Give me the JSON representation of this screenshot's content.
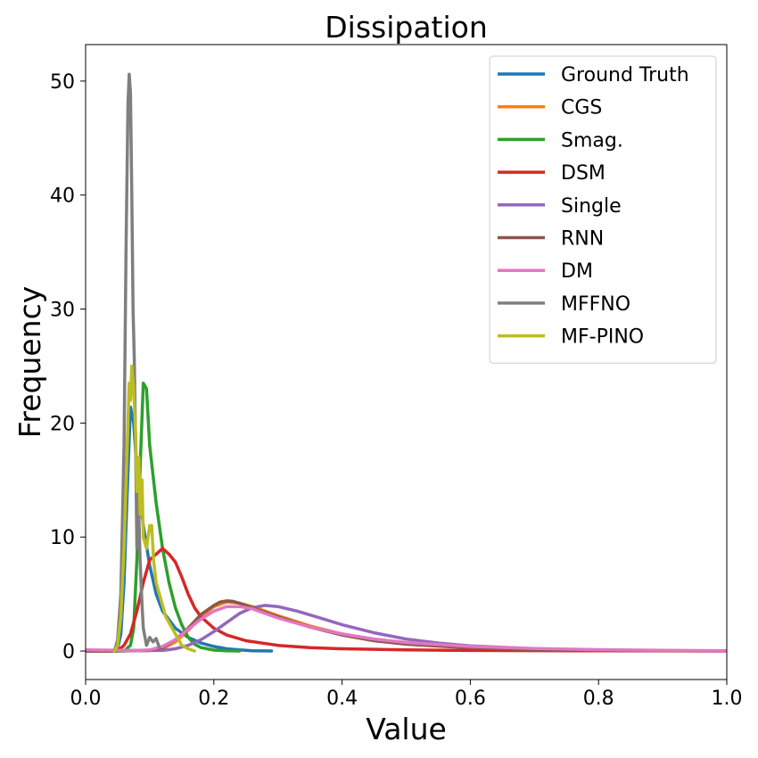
{
  "chart_data": {
    "type": "line",
    "title": "Dissipation",
    "xlabel": "Value",
    "ylabel": "Frequency",
    "xlim": [
      0.0,
      1.0
    ],
    "ylim": [
      -2.5,
      53.2
    ],
    "xticks": [
      0.0,
      0.2,
      0.4,
      0.6,
      0.8,
      1.0
    ],
    "xtick_labels": [
      "0.0",
      "0.2",
      "0.4",
      "0.6",
      "0.8",
      "1.0"
    ],
    "yticks": [
      0,
      10,
      20,
      30,
      40,
      50
    ],
    "ytick_labels": [
      "0",
      "10",
      "20",
      "30",
      "40",
      "50"
    ],
    "legend_position": "top-right",
    "series": [
      {
        "name": "Ground Truth",
        "color": "#1f77b4",
        "x": [
          0.0,
          0.04,
          0.05,
          0.055,
          0.06,
          0.065,
          0.07,
          0.075,
          0.08,
          0.09,
          0.1,
          0.11,
          0.12,
          0.14,
          0.16,
          0.18,
          0.2,
          0.22,
          0.24,
          0.26,
          0.29
        ],
        "y": [
          0,
          0,
          0.2,
          1.5,
          6,
          14,
          21.4,
          20,
          16,
          11,
          7.5,
          5,
          3.5,
          2.0,
          1.2,
          0.7,
          0.4,
          0.2,
          0.1,
          0.03,
          0
        ]
      },
      {
        "name": "CGS",
        "color": "#ff7f0e",
        "x": [
          0.0,
          0.1,
          0.12,
          0.14,
          0.16,
          0.18,
          0.2,
          0.22,
          0.24,
          0.26,
          0.28,
          0.3,
          0.35,
          0.4,
          0.45,
          0.5,
          0.6,
          0.7,
          0.8,
          0.9,
          1.0
        ],
        "y": [
          0,
          0.05,
          0.2,
          0.8,
          1.8,
          3.0,
          3.9,
          4.3,
          4.2,
          3.9,
          3.5,
          3.1,
          2.2,
          1.5,
          1.0,
          0.65,
          0.3,
          0.15,
          0.07,
          0.03,
          0.01
        ]
      },
      {
        "name": "Smag.",
        "color": "#2ca02c",
        "x": [
          0.0,
          0.06,
          0.07,
          0.075,
          0.08,
          0.085,
          0.09,
          0.095,
          0.1,
          0.11,
          0.12,
          0.13,
          0.14,
          0.15,
          0.16,
          0.17,
          0.18,
          0.2,
          0.22,
          0.24
        ],
        "y": [
          0,
          0,
          0.5,
          2,
          8,
          16,
          23.5,
          23,
          18,
          13,
          9,
          6,
          3.8,
          2.3,
          1.2,
          0.6,
          0.3,
          0.08,
          0.02,
          0
        ]
      },
      {
        "name": "DSM",
        "color": "#d62728",
        "x": [
          0.0,
          0.05,
          0.06,
          0.07,
          0.08,
          0.09,
          0.1,
          0.11,
          0.12,
          0.13,
          0.14,
          0.15,
          0.16,
          0.17,
          0.18,
          0.2,
          0.22,
          0.25,
          0.3,
          0.35,
          0.4,
          0.5,
          0.6,
          0.8,
          1.0
        ],
        "y": [
          0,
          0,
          0.5,
          1.5,
          3.5,
          6,
          8,
          8.5,
          9.0,
          8.5,
          7.8,
          6.5,
          5,
          3.8,
          3.0,
          2.0,
          1.4,
          0.9,
          0.5,
          0.3,
          0.2,
          0.1,
          0.05,
          0.02,
          0
        ]
      },
      {
        "name": "Single",
        "color": "#9467bd",
        "x": [
          0.0,
          0.12,
          0.14,
          0.16,
          0.18,
          0.2,
          0.22,
          0.24,
          0.26,
          0.28,
          0.3,
          0.33,
          0.36,
          0.4,
          0.45,
          0.5,
          0.55,
          0.6,
          0.7,
          0.8,
          0.9,
          1.0
        ],
        "y": [
          0,
          0.05,
          0.2,
          0.5,
          1.0,
          1.7,
          2.5,
          3.3,
          3.8,
          4.0,
          3.9,
          3.5,
          3.0,
          2.3,
          1.6,
          1.05,
          0.7,
          0.45,
          0.2,
          0.08,
          0.03,
          0.01
        ]
      },
      {
        "name": "RNN",
        "color": "#8c564b",
        "x": [
          0.0,
          0.1,
          0.12,
          0.14,
          0.16,
          0.18,
          0.2,
          0.21,
          0.22,
          0.23,
          0.24,
          0.26,
          0.28,
          0.3,
          0.35,
          0.4,
          0.45,
          0.5,
          0.6,
          0.7,
          0.8,
          1.0
        ],
        "y": [
          0,
          0.05,
          0.3,
          1.0,
          2.0,
          3.2,
          4.0,
          4.3,
          4.4,
          4.35,
          4.2,
          3.8,
          3.4,
          3.0,
          2.1,
          1.4,
          0.9,
          0.6,
          0.28,
          0.12,
          0.05,
          0.01
        ]
      },
      {
        "name": "DM",
        "color": "#e377c2",
        "x": [
          0.0,
          0.08,
          0.1,
          0.12,
          0.14,
          0.16,
          0.18,
          0.2,
          0.22,
          0.24,
          0.26,
          0.28,
          0.3,
          0.35,
          0.4,
          0.45,
          0.5,
          0.6,
          0.7,
          0.8,
          0.9,
          1.0
        ],
        "y": [
          0.1,
          0.05,
          0.1,
          0.4,
          1.0,
          1.9,
          2.8,
          3.5,
          3.9,
          3.9,
          3.7,
          3.3,
          2.9,
          2.1,
          1.5,
          1.05,
          0.75,
          0.4,
          0.22,
          0.12,
          0.06,
          0.03
        ]
      },
      {
        "name": "MFFNO",
        "color": "#7f7f7f",
        "x": [
          0.045,
          0.05,
          0.055,
          0.06,
          0.063,
          0.066,
          0.068,
          0.07,
          0.072,
          0.074,
          0.076,
          0.078,
          0.08,
          0.082,
          0.085,
          0.088,
          0.09,
          0.095,
          0.1,
          0.105,
          0.11,
          0.115
        ],
        "y": [
          0,
          1,
          5,
          18,
          35,
          48,
          50.6,
          49,
          40,
          30,
          25.6,
          18,
          9,
          14,
          8,
          4,
          2,
          0.5,
          1.2,
          0.8,
          1.1,
          0.3
        ]
      },
      {
        "name": "MF-PINO",
        "color": "#bcbd22",
        "x": [
          0.045,
          0.05,
          0.055,
          0.06,
          0.065,
          0.068,
          0.07,
          0.072,
          0.075,
          0.078,
          0.08,
          0.083,
          0.085,
          0.088,
          0.09,
          0.095,
          0.1,
          0.103,
          0.106,
          0.11,
          0.115,
          0.12,
          0.125,
          0.13,
          0.14,
          0.15,
          0.16,
          0.17
        ],
        "y": [
          0,
          0.5,
          3,
          9,
          18,
          23.5,
          22,
          25,
          23,
          19,
          14,
          17,
          12,
          15,
          10,
          9,
          11,
          11,
          8,
          6,
          5,
          4,
          3,
          2.5,
          1.5,
          0.5,
          0.2,
          0
        ]
      }
    ]
  }
}
